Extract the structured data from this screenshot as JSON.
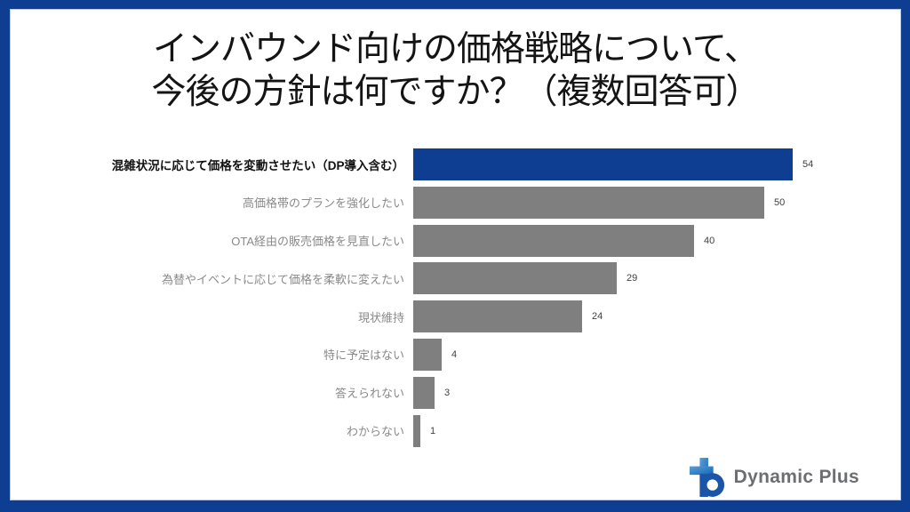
{
  "title": {
    "line1": "インバウンド向けの価格戦略について、",
    "line2": "今後の方針は何ですか？（複数回答可）"
  },
  "chart_data": {
    "type": "bar",
    "orientation": "horizontal",
    "title": "インバウンド向けの価格戦略について、今後の方針は何ですか？（複数回答可）",
    "categories": [
      "混雑状況に応じて価格を変動させたい（DP導入含む）",
      "高価格帯のプランを強化したい",
      "OTA経由の販売価格を見直したい",
      "為替やイベントに応じて価格を柔軟に変えたい",
      "現状維持",
      "特に予定はない",
      "答えられない",
      "わからない"
    ],
    "values": [
      54,
      50,
      40,
      29,
      24,
      4,
      3,
      1
    ],
    "highlight_index": 0,
    "xlim": [
      0,
      54
    ],
    "grid": false,
    "legend": false,
    "value_labels_shown": true,
    "colors": {
      "highlight_bar": "#0d3e91",
      "default_bar": "#7f7f7f",
      "highlight_label": "#111111",
      "default_label": "#8a8a8a",
      "value_label": "#404040"
    }
  },
  "footer": {
    "logo_text": "Dynamic Plus",
    "logo_text_color": "#6d6e71",
    "logo_blue_light": "#5aa0d8",
    "logo_blue_mid": "#1565b5",
    "logo_blue_dark": "#1a55a8"
  },
  "frame": {
    "border_color": "#0d3e91",
    "inner_line_color": "#bcc9e8",
    "background": "#ffffff"
  }
}
